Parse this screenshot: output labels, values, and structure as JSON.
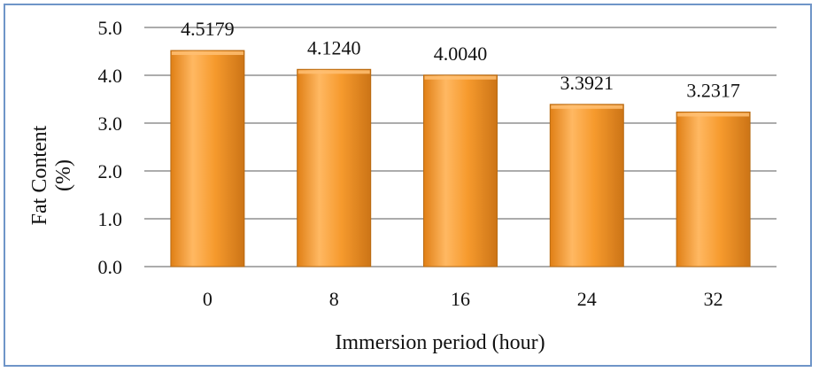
{
  "chart_data": {
    "type": "bar",
    "categories": [
      "0",
      "8",
      "16",
      "24",
      "32"
    ],
    "values": [
      4.5179,
      4.124,
      4.004,
      3.3921,
      3.2317
    ],
    "value_labels": [
      "4.5179",
      "4.1240",
      "4.0040",
      "3.3921",
      "3.2317"
    ],
    "title": "",
    "xlabel": "Immersion period (hour)",
    "ylabel_lines": [
      "Fat Content",
      "(%)"
    ],
    "ylim": [
      0,
      5
    ],
    "yticks": [
      0,
      1,
      2,
      3,
      4,
      5
    ],
    "ytick_labels": [
      "0.0",
      "1.0",
      "2.0",
      "3.0",
      "4.0",
      "5.0"
    ],
    "grid": "horizontal",
    "legend": "none",
    "colors": {
      "bar_light": "#ffc073",
      "bar_mid": "#f39a2e",
      "bar_dark": "#b86a12",
      "gridline": "#7a7a7a",
      "frame": "#6f95c8"
    }
  }
}
